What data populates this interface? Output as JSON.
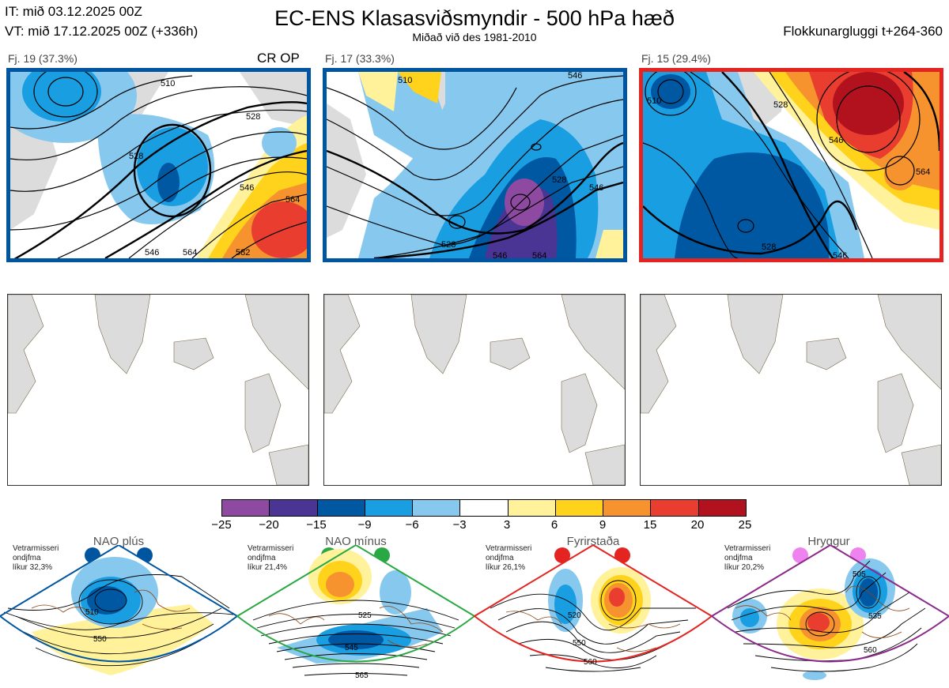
{
  "header": {
    "it_line": "IT: mið 03.12.2025 00Z",
    "vt_line": "VT: mið 17.12.2025 00Z  (+336h)",
    "title": "EC-ENS Klasasviðsmyndir - 500 hPa hæð",
    "subtitle": "Miðað við des 1981-2010",
    "window": "Flokkunargluggi t+264-360"
  },
  "panels": [
    {
      "label": "Fj. 19 (37.3%)",
      "extra": "CR OP",
      "frame_color": "#0055a0",
      "contour_labels": [
        "510",
        "528",
        "528",
        "546",
        "564",
        "546",
        "564",
        "582"
      ]
    },
    {
      "label": "Fj. 17 (33.3%)",
      "extra": "",
      "frame_color": "#0055a0",
      "contour_labels": [
        "510",
        "528",
        "546",
        "528",
        "546",
        "564",
        "546"
      ]
    },
    {
      "label": "Fj. 15 (29.4%)",
      "extra": "",
      "frame_color": "#e42421",
      "contour_labels": [
        "510",
        "528",
        "546",
        "564",
        "528",
        "546"
      ]
    }
  ],
  "colorbar": {
    "ticks": [
      "−25",
      "−20",
      "−15",
      "−9",
      "−6",
      "−3",
      "3",
      "6",
      "9",
      "15",
      "20",
      "25"
    ],
    "colors": [
      "#8e4aa1",
      "#4a3594",
      "#0058a3",
      "#1a9ee2",
      "#86c8ee",
      "#ffffff",
      "#fff29a",
      "#ffd21c",
      "#f7932e",
      "#e93d30",
      "#b2121e"
    ]
  },
  "regimes": [
    {
      "name": "NAO plús",
      "stat_lines": [
        "Vetrarmisseri",
        "ondjfma",
        "líkur 32,3%"
      ],
      "color": "#0055a0",
      "dot_color": "#0055a0",
      "contour_labels": [
        "510",
        "550"
      ]
    },
    {
      "name": "NAO mínus",
      "stat_lines": [
        "Vetrarmisseri",
        "ondjfma",
        "líkur 21,4%"
      ],
      "color": "#2aa844",
      "dot_color": "#2aa844",
      "contour_labels": [
        "525",
        "545",
        "565"
      ]
    },
    {
      "name": "Fyrirstaða",
      "stat_lines": [
        "Vetrarmisseri",
        "ondjfma",
        "líkur 26,1%"
      ],
      "color": "#e42421",
      "dot_color": "#e42421",
      "contour_labels": [
        "520",
        "550",
        "560"
      ]
    },
    {
      "name": "Hryggur",
      "stat_lines": [
        "Vetrarmisseri",
        "ondjfma",
        "líkur 20,2%"
      ],
      "color": "#8a2a8a",
      "dot_color": "#ee82ee",
      "contour_labels": [
        "505",
        "535",
        "560"
      ]
    }
  ]
}
